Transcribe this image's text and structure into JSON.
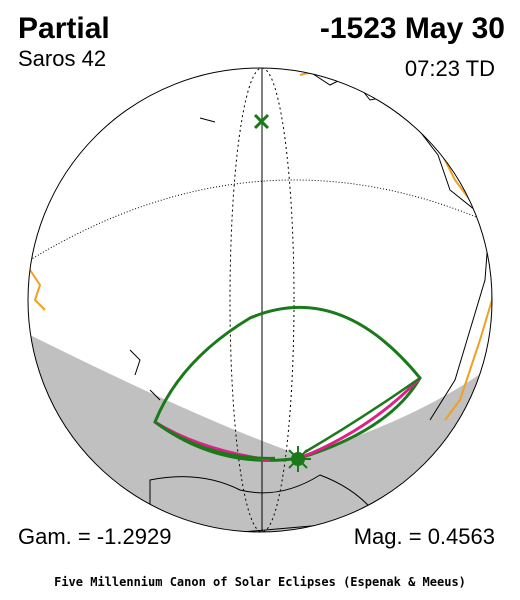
{
  "header": {
    "title": "Partial",
    "date": "-1523 May 30",
    "saros": "Saros  42",
    "time": "07:23 TD"
  },
  "footer": {
    "gamma": "Gam. = -1.2929",
    "magnitude": "Mag. = 0.4563",
    "credit": "Five Millennium Canon of Solar Eclipses (Espenak & Meeus)"
  }
}
